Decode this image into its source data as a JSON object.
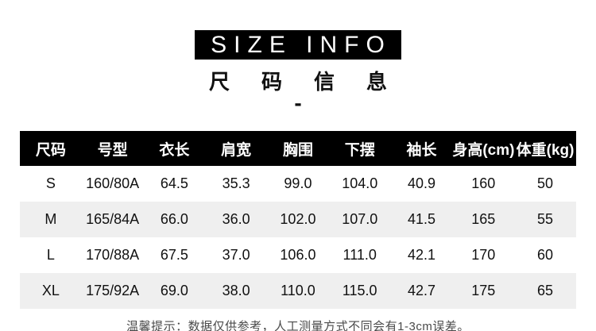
{
  "title": {
    "en": "SIZE INFO",
    "zh": "尺码信息",
    "divider": "-"
  },
  "table": {
    "headers": [
      "尺码",
      "号型",
      "衣长",
      "肩宽",
      "胸围",
      "下摆",
      "袖长",
      "身高(cm)",
      "体重(kg)"
    ],
    "rows": [
      [
        "S",
        "160/80A",
        "64.5",
        "35.3",
        "99.0",
        "104.0",
        "40.9",
        "160",
        "50"
      ],
      [
        "M",
        "165/84A",
        "66.0",
        "36.0",
        "102.0",
        "107.0",
        "41.5",
        "165",
        "55"
      ],
      [
        "L",
        "170/88A",
        "67.5",
        "37.0",
        "106.0",
        "111.0",
        "42.1",
        "170",
        "60"
      ],
      [
        "XL",
        "175/92A",
        "69.0",
        "38.0",
        "110.0",
        "115.0",
        "42.7",
        "175",
        "65"
      ]
    ]
  },
  "note": "温馨提示：数据仅供参考，人工测量方式不同会有1-3cm误差。",
  "colors": {
    "title_box_bg": "#000000",
    "header_bg": "#000000",
    "header_text": "#ffffff",
    "stripe_bg": "#efefef",
    "body_text": "#111111",
    "note_text": "#4a4a4a"
  },
  "chart_data": {
    "type": "table",
    "title": "SIZE INFO 尺码信息",
    "columns": [
      "尺码",
      "号型",
      "衣长",
      "肩宽",
      "胸围",
      "下摆",
      "袖长",
      "身高(cm)",
      "体重(kg)"
    ],
    "rows": [
      {
        "size": "S",
        "model": "160/80A",
        "garment_length": 64.5,
        "shoulder_width": 35.3,
        "bust": 99.0,
        "hem": 104.0,
        "sleeve_length": 40.9,
        "height_cm": 160,
        "weight_kg": 50
      },
      {
        "size": "M",
        "model": "165/84A",
        "garment_length": 66.0,
        "shoulder_width": 36.0,
        "bust": 102.0,
        "hem": 107.0,
        "sleeve_length": 41.5,
        "height_cm": 165,
        "weight_kg": 55
      },
      {
        "size": "L",
        "model": "170/88A",
        "garment_length": 67.5,
        "shoulder_width": 37.0,
        "bust": 106.0,
        "hem": 111.0,
        "sleeve_length": 42.1,
        "height_cm": 170,
        "weight_kg": 60
      },
      {
        "size": "XL",
        "model": "175/92A",
        "garment_length": 69.0,
        "shoulder_width": 38.0,
        "bust": 110.0,
        "hem": 115.0,
        "sleeve_length": 42.7,
        "height_cm": 175,
        "weight_kg": 65
      }
    ]
  }
}
